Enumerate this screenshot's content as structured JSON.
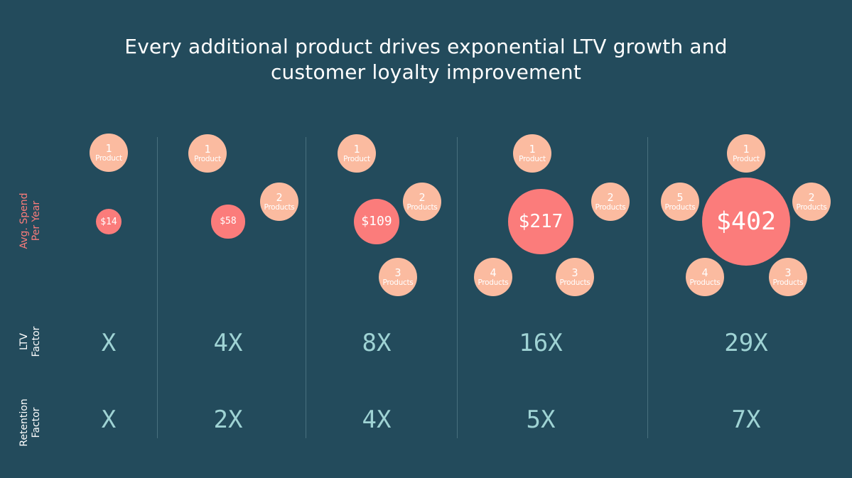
{
  "title": {
    "line1": "Every additional product drives exponential LTV growth and",
    "line2": "customer loyalty improvement"
  },
  "row_labels": {
    "spend": {
      "line1": "Avg. Spend",
      "line2": "Per Year",
      "color": "#fb7c7b"
    },
    "ltv": {
      "line1": "LTV",
      "line2": "Factor",
      "color": "#ffffff"
    },
    "retention": {
      "line1": "Retention",
      "line2": "Factor",
      "color": "#ffffff"
    }
  },
  "colors": {
    "background": "#234b5c",
    "product_bubble": "#fbbba0",
    "spend_bubble": "#fb7c7b",
    "factor_text": "#9fd3d4",
    "divider": "#48707e"
  },
  "columns": [
    {
      "products_count": 1,
      "spend": "$14",
      "spend_value": 14,
      "ltv_factor": "X",
      "retention_factor": "X",
      "products": [
        {
          "num": "1",
          "label": "Product"
        }
      ]
    },
    {
      "products_count": 2,
      "spend": "$58",
      "spend_value": 58,
      "ltv_factor": "4X",
      "retention_factor": "2X",
      "products": [
        {
          "num": "1",
          "label": "Product"
        },
        {
          "num": "2",
          "label": "Products"
        }
      ]
    },
    {
      "products_count": 3,
      "spend": "$109",
      "spend_value": 109,
      "ltv_factor": "8X",
      "retention_factor": "4X",
      "products": [
        {
          "num": "1",
          "label": "Product"
        },
        {
          "num": "2",
          "label": "Products"
        },
        {
          "num": "3",
          "label": "Products"
        }
      ]
    },
    {
      "products_count": 4,
      "spend": "$217",
      "spend_value": 217,
      "ltv_factor": "16X",
      "retention_factor": "5X",
      "products": [
        {
          "num": "1",
          "label": "Product"
        },
        {
          "num": "2",
          "label": "Products"
        },
        {
          "num": "3",
          "label": "Products"
        },
        {
          "num": "4",
          "label": "Products"
        }
      ]
    },
    {
      "products_count": 5,
      "spend": "$402",
      "spend_value": 402,
      "ltv_factor": "29X",
      "retention_factor": "7X",
      "products": [
        {
          "num": "1",
          "label": "Product"
        },
        {
          "num": "2",
          "label": "Products"
        },
        {
          "num": "3",
          "label": "Products"
        },
        {
          "num": "4",
          "label": "Products"
        },
        {
          "num": "5",
          "label": "Products"
        }
      ]
    }
  ]
}
